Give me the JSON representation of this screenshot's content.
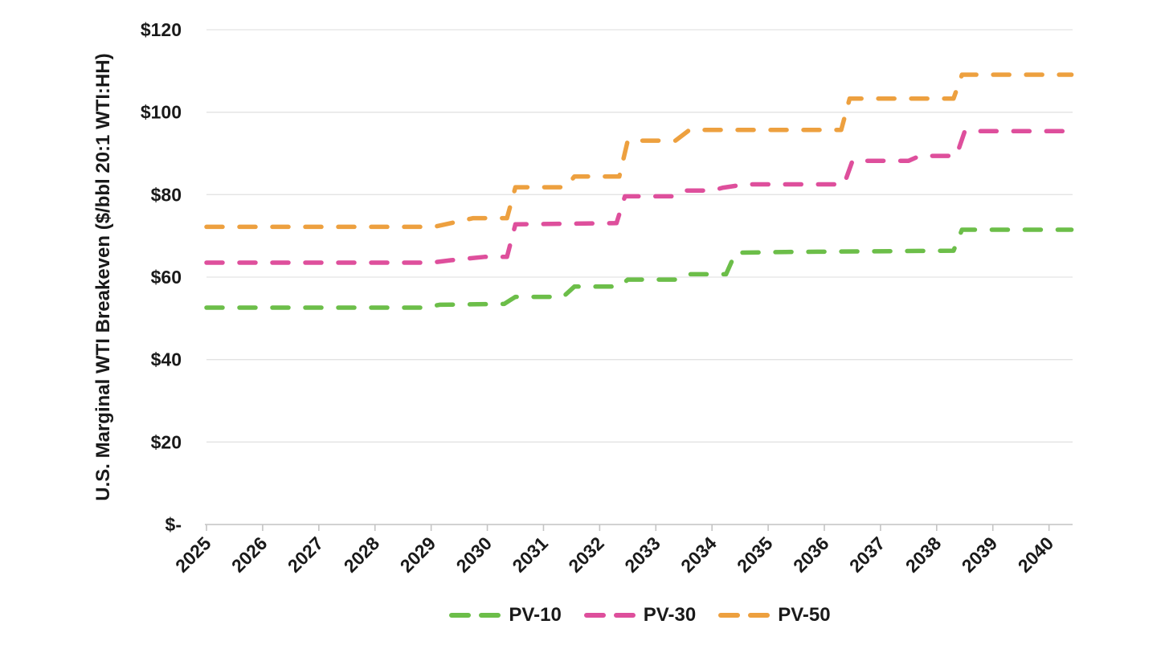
{
  "chart_data": {
    "type": "line",
    "subtype": "stepped-dashed",
    "title": "",
    "xlabel": "",
    "ylabel": "U.S. Marginal WTI Breakeven ($/bbl 20:1 WTI:HH)",
    "xlim": [
      2025,
      2040.42
    ],
    "ylim": [
      0,
      120
    ],
    "grid": true,
    "legend_position": "bottom-center",
    "x_tick_labels": [
      "2025",
      "2026",
      "2027",
      "2028",
      "2029",
      "2030",
      "2031",
      "2032",
      "2033",
      "2034",
      "2035",
      "2036",
      "2037",
      "2038",
      "2039",
      "2040"
    ],
    "y_ticks": [
      {
        "value": 0,
        "label": "$-"
      },
      {
        "value": 20,
        "label": "$20"
      },
      {
        "value": 40,
        "label": "$40"
      },
      {
        "value": 60,
        "label": "$60"
      },
      {
        "value": 80,
        "label": "$80"
      },
      {
        "value": 100,
        "label": "$100"
      },
      {
        "value": 120,
        "label": "$120"
      }
    ],
    "colors": {
      "grid": "#e3e3e3",
      "axis": "#c4c4c4",
      "text": "#1a1a1a"
    },
    "series": [
      {
        "name": "PV-10",
        "color": "#6cbe49",
        "points": [
          [
            2025.0,
            52.6
          ],
          [
            2028.9,
            52.6
          ],
          [
            2029.15,
            53.3
          ],
          [
            2030.3,
            53.5
          ],
          [
            2030.5,
            55.2
          ],
          [
            2031.35,
            55.2
          ],
          [
            2031.55,
            57.7
          ],
          [
            2032.35,
            57.7
          ],
          [
            2032.5,
            59.4
          ],
          [
            2033.4,
            59.4
          ],
          [
            2033.6,
            60.7
          ],
          [
            2034.25,
            60.7
          ],
          [
            2034.42,
            65.9
          ],
          [
            2035.3,
            66.1
          ],
          [
            2038.3,
            66.4
          ],
          [
            2038.45,
            71.5
          ],
          [
            2040.4,
            71.5
          ]
        ]
      },
      {
        "name": "PV-30",
        "color": "#de4f9c",
        "points": [
          [
            2025.0,
            63.5
          ],
          [
            2029.0,
            63.5
          ],
          [
            2029.35,
            64.1
          ],
          [
            2029.95,
            64.9
          ],
          [
            2030.35,
            64.9
          ],
          [
            2030.5,
            72.8
          ],
          [
            2032.3,
            73.1
          ],
          [
            2032.45,
            79.6
          ],
          [
            2033.3,
            79.6
          ],
          [
            2033.5,
            81.0
          ],
          [
            2034.0,
            81.0
          ],
          [
            2034.2,
            81.7
          ],
          [
            2034.6,
            82.5
          ],
          [
            2036.35,
            82.5
          ],
          [
            2036.5,
            88.2
          ],
          [
            2037.5,
            88.2
          ],
          [
            2037.7,
            89.4
          ],
          [
            2038.35,
            89.4
          ],
          [
            2038.5,
            95.4
          ],
          [
            2040.4,
            95.4
          ]
        ]
      },
      {
        "name": "PV-50",
        "color": "#eda03f",
        "points": [
          [
            2025.0,
            72.2
          ],
          [
            2029.05,
            72.2
          ],
          [
            2029.75,
            74.3
          ],
          [
            2030.35,
            74.3
          ],
          [
            2030.5,
            81.8
          ],
          [
            2031.4,
            81.8
          ],
          [
            2031.55,
            84.4
          ],
          [
            2032.35,
            84.4
          ],
          [
            2032.5,
            93.1
          ],
          [
            2033.35,
            93.1
          ],
          [
            2033.6,
            95.7
          ],
          [
            2036.3,
            95.7
          ],
          [
            2036.45,
            103.3
          ],
          [
            2038.3,
            103.3
          ],
          [
            2038.45,
            109.1
          ],
          [
            2040.4,
            109.1
          ]
        ]
      }
    ]
  }
}
